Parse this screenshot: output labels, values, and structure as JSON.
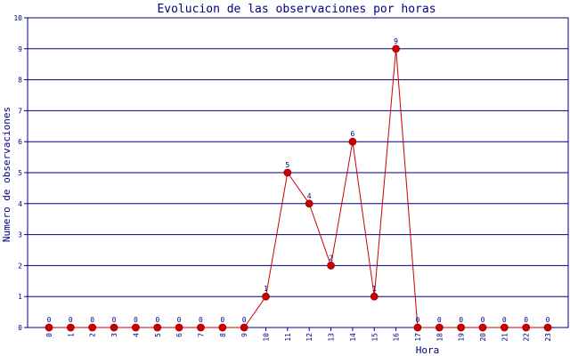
{
  "chart_data": {
    "type": "line",
    "title": "Evolucion de las observaciones por horas",
    "xlabel": "Hora",
    "ylabel": "Numero de observaciones",
    "categories": [
      "0",
      "1",
      "2",
      "3",
      "4",
      "5",
      "6",
      "7",
      "8",
      "9",
      "10",
      "11",
      "12",
      "13",
      "14",
      "15",
      "16",
      "17",
      "18",
      "19",
      "20",
      "21",
      "22",
      "23"
    ],
    "series": [
      {
        "values": [
          0,
          0,
          0,
          0,
          0,
          0,
          0,
          0,
          0,
          0,
          1,
          5,
          4,
          2,
          6,
          1,
          9,
          0,
          0,
          0,
          0,
          0,
          0,
          0
        ]
      }
    ],
    "ylim": [
      0,
      10
    ],
    "yticks": [
      "0",
      "1",
      "2",
      "3",
      "4",
      "5",
      "6",
      "7",
      "8",
      "9",
      "10"
    ],
    "grid": true,
    "data_labels": true,
    "colors": {
      "line": "#cc0000",
      "marker": "#cc0000",
      "grid": "#000080",
      "axis": "#000080",
      "title": "#000080",
      "axis_text": "#000080",
      "data_label": "#000080"
    }
  }
}
